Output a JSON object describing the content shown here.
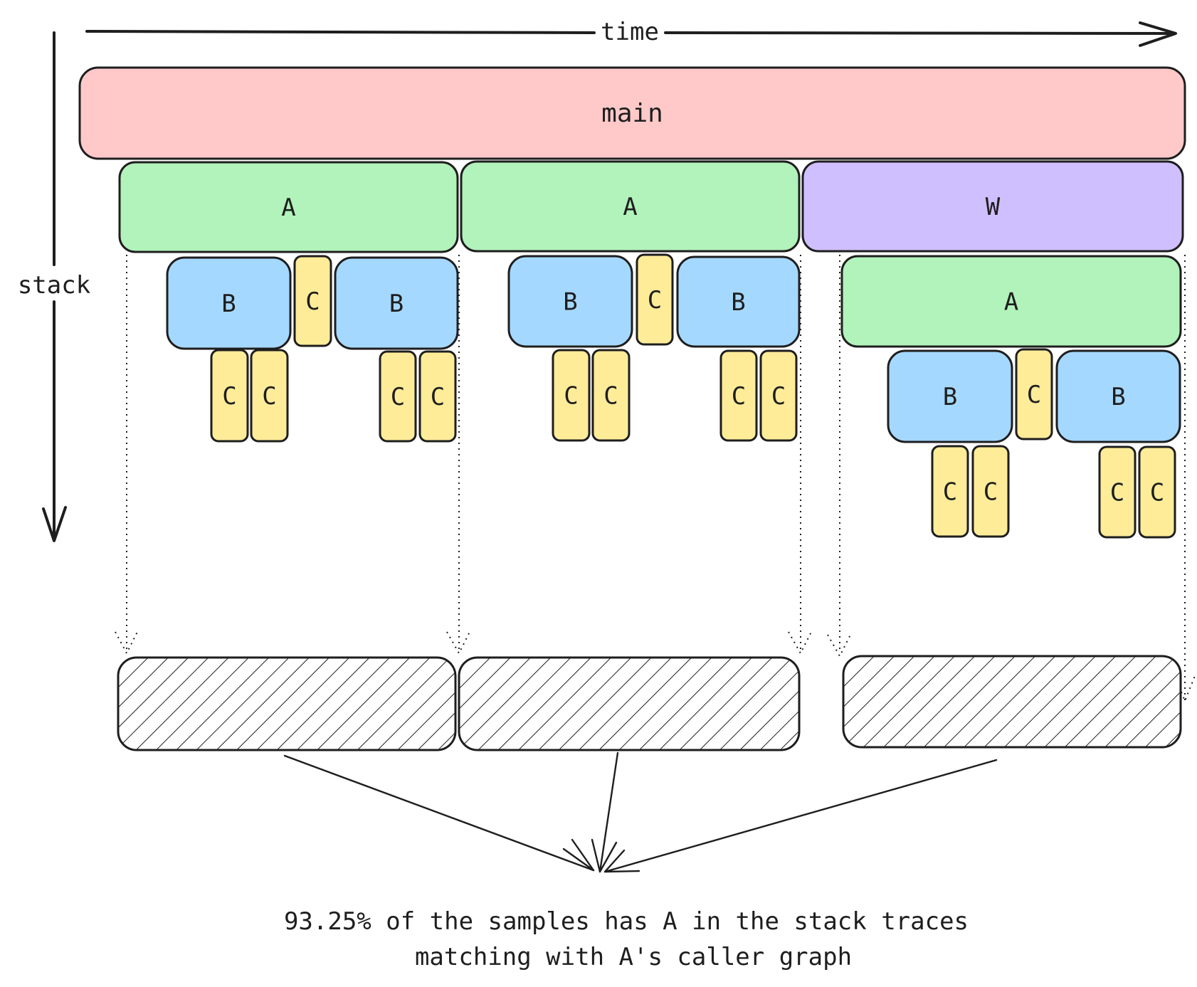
{
  "axes": {
    "x_label": "time",
    "y_label": "stack"
  },
  "colors": {
    "main": "#ffc9c9",
    "A": "#b2f2bb",
    "W": "#d0bfff",
    "B": "#a5d8ff",
    "C": "#ffec99",
    "outline": "#1e1e1e"
  },
  "frames": [
    {
      "id": "main",
      "label": "main"
    },
    {
      "id": "A1",
      "label": "A"
    },
    {
      "id": "A2",
      "label": "A"
    },
    {
      "id": "W",
      "label": "W"
    },
    {
      "id": "A3",
      "label": "A"
    },
    {
      "id": "B1",
      "label": "B"
    },
    {
      "id": "C1",
      "label": "C"
    },
    {
      "id": "B2",
      "label": "B"
    },
    {
      "id": "C2",
      "label": "C"
    },
    {
      "id": "C3",
      "label": "C"
    },
    {
      "id": "C4",
      "label": "C"
    },
    {
      "id": "C5",
      "label": "C"
    },
    {
      "id": "B3",
      "label": "B"
    },
    {
      "id": "C6",
      "label": "C"
    },
    {
      "id": "B4",
      "label": "B"
    },
    {
      "id": "C7",
      "label": "C"
    },
    {
      "id": "C8",
      "label": "C"
    },
    {
      "id": "C9",
      "label": "C"
    },
    {
      "id": "C10",
      "label": "C"
    },
    {
      "id": "B5",
      "label": "B"
    },
    {
      "id": "C11",
      "label": "C"
    },
    {
      "id": "B6",
      "label": "B"
    },
    {
      "id": "C12",
      "label": "C"
    },
    {
      "id": "C13",
      "label": "C"
    },
    {
      "id": "C14",
      "label": "C"
    },
    {
      "id": "C15",
      "label": "C"
    }
  ],
  "caption": {
    "line1": "93.25% of the samples has A in the stack traces",
    "line2": "matching with A's caller graph"
  }
}
